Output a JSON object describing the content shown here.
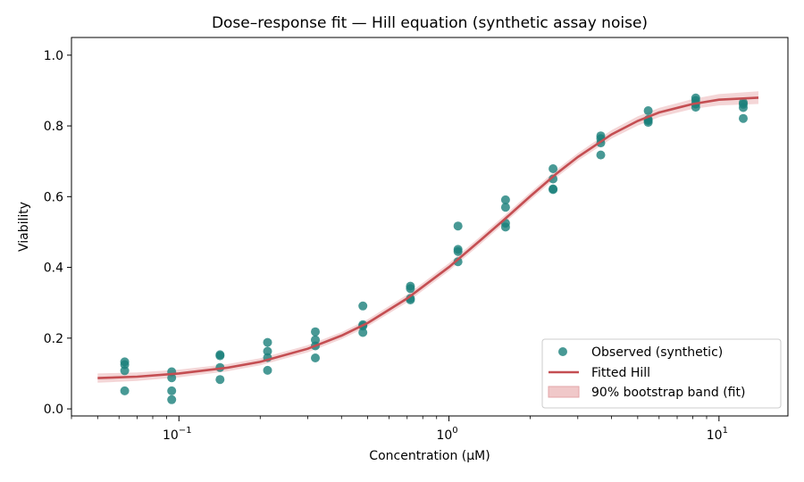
{
  "chart_data": {
    "type": "scatter",
    "title": "Dose–response fit — Hill equation (synthetic assay noise)",
    "xlabel": "Concentration (µM)",
    "ylabel": "Viability",
    "xscale": "log",
    "xlim": [
      0.04,
      18
    ],
    "ylim": [
      -0.02,
      1.05
    ],
    "y_ticks": [
      "0.0",
      "0.2",
      "0.4",
      "0.6",
      "0.8",
      "1.0"
    ],
    "x_ticks": [
      {
        "value": 0.1,
        "base": "10",
        "exp": "−1"
      },
      {
        "value": 1,
        "base": "10",
        "exp": "0"
      },
      {
        "value": 10,
        "base": "10",
        "exp": "1"
      }
    ],
    "grid": false,
    "legend_position": "lower-right",
    "legend": [
      "Observed (synthetic)",
      "Fitted Hill",
      "90% bootstrap band (fit)"
    ],
    "colors": {
      "points": "#1a7f7a",
      "fit": "#c44e52",
      "band": "#f0c8c9"
    },
    "series": [
      {
        "name": "Observed (synthetic)",
        "kind": "scatter",
        "points": [
          [
            0.063,
            0.133
          ],
          [
            0.063,
            0.125
          ],
          [
            0.063,
            0.108
          ],
          [
            0.063,
            0.051
          ],
          [
            0.094,
            0.105
          ],
          [
            0.094,
            0.088
          ],
          [
            0.094,
            0.051
          ],
          [
            0.094,
            0.026
          ],
          [
            0.142,
            0.153
          ],
          [
            0.142,
            0.15
          ],
          [
            0.142,
            0.117
          ],
          [
            0.142,
            0.083
          ],
          [
            0.213,
            0.188
          ],
          [
            0.213,
            0.163
          ],
          [
            0.213,
            0.145
          ],
          [
            0.213,
            0.109
          ],
          [
            0.32,
            0.218
          ],
          [
            0.32,
            0.195
          ],
          [
            0.32,
            0.178
          ],
          [
            0.32,
            0.144
          ],
          [
            0.48,
            0.291
          ],
          [
            0.48,
            0.238
          ],
          [
            0.48,
            0.234
          ],
          [
            0.48,
            0.216
          ],
          [
            0.72,
            0.347
          ],
          [
            0.72,
            0.34
          ],
          [
            0.72,
            0.312
          ],
          [
            0.72,
            0.308
          ],
          [
            1.08,
            0.517
          ],
          [
            1.08,
            0.451
          ],
          [
            1.08,
            0.445
          ],
          [
            1.08,
            0.416
          ],
          [
            1.62,
            0.591
          ],
          [
            1.62,
            0.57
          ],
          [
            1.62,
            0.525
          ],
          [
            1.62,
            0.514
          ],
          [
            2.43,
            0.679
          ],
          [
            2.43,
            0.65
          ],
          [
            2.43,
            0.622
          ],
          [
            2.43,
            0.62
          ],
          [
            3.65,
            0.772
          ],
          [
            3.65,
            0.764
          ],
          [
            3.65,
            0.752
          ],
          [
            3.65,
            0.718
          ],
          [
            5.47,
            0.843
          ],
          [
            5.47,
            0.818
          ],
          [
            5.47,
            0.815
          ],
          [
            5.47,
            0.81
          ],
          [
            8.2,
            0.879
          ],
          [
            8.2,
            0.872
          ],
          [
            8.2,
            0.862
          ],
          [
            8.2,
            0.853
          ],
          [
            12.3,
            0.866
          ],
          [
            12.3,
            0.861
          ],
          [
            12.3,
            0.852
          ],
          [
            12.3,
            0.821
          ]
        ]
      },
      {
        "name": "Fitted Hill",
        "kind": "line",
        "points": [
          [
            0.05,
            0.087
          ],
          [
            0.07,
            0.091
          ],
          [
            0.1,
            0.1
          ],
          [
            0.15,
            0.116
          ],
          [
            0.2,
            0.133
          ],
          [
            0.3,
            0.17
          ],
          [
            0.4,
            0.207
          ],
          [
            0.5,
            0.243
          ],
          [
            0.7,
            0.312
          ],
          [
            1.0,
            0.401
          ],
          [
            1.3,
            0.475
          ],
          [
            1.6,
            0.535
          ],
          [
            2.0,
            0.601
          ],
          [
            2.5,
            0.665
          ],
          [
            3.0,
            0.712
          ],
          [
            4.0,
            0.776
          ],
          [
            5.0,
            0.814
          ],
          [
            6.0,
            0.838
          ],
          [
            8.0,
            0.862
          ],
          [
            10.0,
            0.874
          ],
          [
            14.0,
            0.88
          ]
        ]
      },
      {
        "name": "90% bootstrap band (fit)",
        "kind": "band",
        "halfwidth": [
          0.013,
          0.012,
          0.011,
          0.01,
          0.01,
          0.01,
          0.01,
          0.01,
          0.011,
          0.011,
          0.011,
          0.011,
          0.011,
          0.011,
          0.011,
          0.012,
          0.013,
          0.013,
          0.014,
          0.016,
          0.018
        ]
      }
    ]
  }
}
